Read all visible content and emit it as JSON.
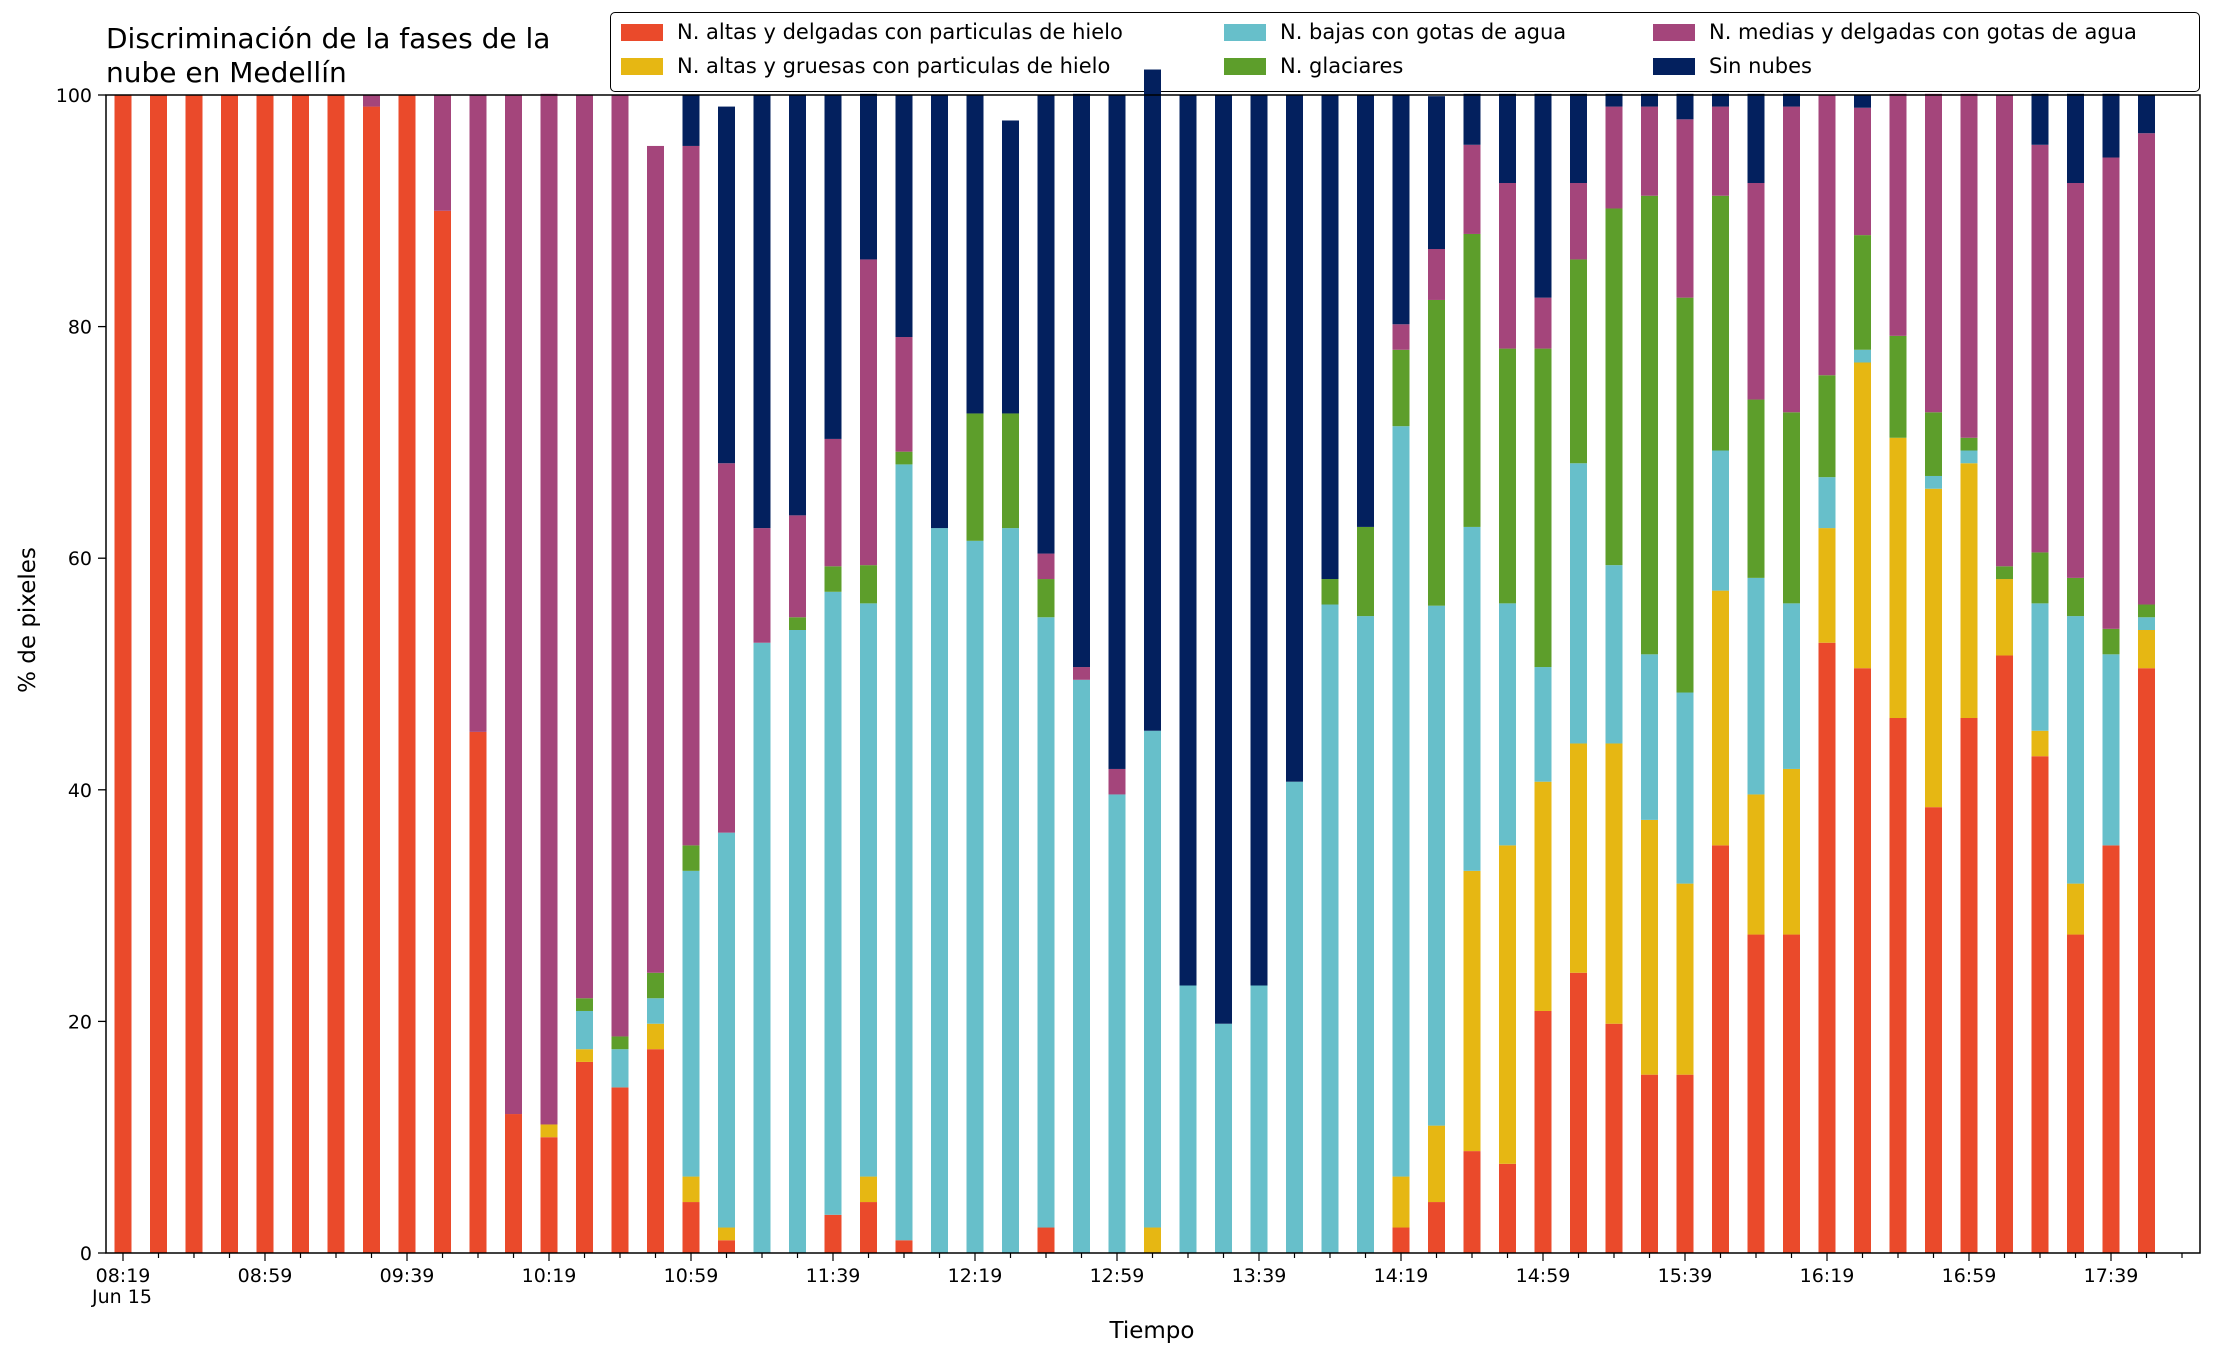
{
  "chart_data": {
    "type": "bar",
    "stacked": true,
    "title": "Discriminación de la fases de la\nnube en Medellín",
    "xlabel": "Tiempo",
    "ylabel": "% de pixeles",
    "ylim": [
      0,
      100
    ],
    "yticks": [
      0,
      20,
      40,
      60,
      80,
      100
    ],
    "date_label": "Jun 15",
    "xtick_labels": [
      "08:19",
      "08:59",
      "09:39",
      "10:19",
      "10:59",
      "11:39",
      "12:19",
      "12:59",
      "13:39",
      "14:19",
      "14:59",
      "15:39",
      "16:19",
      "16:59",
      "17:39"
    ],
    "x_start": "08:19",
    "x_interval_minutes": 10,
    "x_tick_every": 4,
    "series": [
      {
        "name": "N. altas y delgadas con particulas de hielo",
        "color": "#ea4a2b",
        "values": [
          100,
          100,
          100,
          100,
          100,
          100,
          100,
          99,
          100,
          90,
          45,
          12,
          10,
          16.5,
          14.3,
          17.6,
          4.4,
          1.1,
          0,
          0,
          3.3,
          4.4,
          1.1,
          0,
          0,
          0,
          2.2,
          0,
          0,
          0,
          0,
          0,
          0,
          0,
          0,
          0,
          2.2,
          4.4,
          8.8,
          7.7,
          20.9,
          24.2,
          19.8,
          15.4,
          15.4,
          35.2,
          27.5,
          27.5,
          52.7,
          50.5,
          46.2,
          38.5,
          46.2,
          51.6,
          42.9,
          27.5,
          35.2,
          50.5
        ]
      },
      {
        "name": "N. altas y gruesas con particulas de hielo",
        "color": "#e6b713",
        "values": [
          0,
          0,
          0,
          0,
          0,
          0,
          0,
          0,
          0,
          0,
          0,
          0,
          1.1,
          1.1,
          0,
          2.2,
          2.2,
          1.1,
          0,
          0,
          0,
          2.2,
          0,
          0,
          0,
          0,
          0,
          0,
          0,
          2.2,
          0,
          0,
          0,
          0,
          0,
          0,
          4.4,
          6.6,
          24.2,
          27.5,
          19.8,
          19.8,
          24.2,
          22,
          16.5,
          22,
          12.1,
          14.3,
          9.9,
          26.4,
          24.2,
          27.5,
          22,
          6.6,
          2.2,
          4.4,
          0,
          3.3
        ]
      },
      {
        "name": "N. bajas con gotas de agua",
        "color": "#67bfca",
        "values": [
          0,
          0,
          0,
          0,
          0,
          0,
          0,
          0,
          0,
          0,
          0,
          0,
          0,
          3.3,
          3.3,
          2.2,
          26.4,
          34.1,
          52.7,
          53.8,
          53.8,
          49.5,
          67,
          62.6,
          61.5,
          62.6,
          52.7,
          49.5,
          39.6,
          42.9,
          23.1,
          19.8,
          23.1,
          40.7,
          56,
          55,
          64.8,
          44.9,
          29.7,
          20.9,
          9.9,
          24.2,
          15.4,
          14.3,
          16.5,
          12.1,
          18.7,
          14.3,
          4.4,
          1.1,
          0,
          1.1,
          1.1,
          0,
          11,
          23.1,
          16.5,
          1.1
        ]
      },
      {
        "name": "N. glaciares",
        "color": "#5d9e2b",
        "values": [
          0,
          0,
          0,
          0,
          0,
          0,
          0,
          0,
          0,
          0,
          0,
          0,
          0,
          1.1,
          1.1,
          2.2,
          2.2,
          0,
          0,
          1.1,
          2.2,
          3.3,
          1.1,
          0,
          11,
          9.9,
          3.3,
          0,
          0,
          0,
          0,
          0,
          0,
          0,
          2.2,
          7.7,
          6.6,
          26.4,
          25.3,
          22,
          27.5,
          17.6,
          30.8,
          39.6,
          34.1,
          22,
          15.4,
          16.5,
          8.8,
          9.9,
          8.8,
          5.5,
          1.1,
          1.1,
          4.4,
          3.3,
          2.2,
          1.1
        ]
      },
      {
        "name": "N. medias y delgadas con gotas de agua",
        "color": "#a4457b",
        "values": [
          0,
          0,
          0,
          0,
          0,
          0,
          0,
          1,
          0,
          10,
          55,
          88,
          89,
          78,
          81.3,
          71.4,
          60.4,
          31.9,
          9.9,
          8.8,
          11,
          26.4,
          9.9,
          0,
          0,
          0,
          2.2,
          1.1,
          2.2,
          0,
          0,
          0,
          0,
          0,
          0,
          0,
          2.2,
          4.4,
          7.7,
          14.3,
          4.4,
          6.6,
          8.8,
          7.7,
          15.4,
          7.7,
          18.7,
          26.4,
          24.2,
          11,
          20.9,
          27.5,
          29.7,
          40.7,
          35.2,
          34.1,
          40.7,
          40.7
        ]
      },
      {
        "name": "Sin nubes",
        "color": "#03205e",
        "values": [
          0,
          0,
          0,
          0,
          0,
          0,
          0,
          0,
          0,
          0,
          0,
          0,
          0,
          0,
          0,
          0,
          4.4,
          30.8,
          37.4,
          36.3,
          29.7,
          14.3,
          20.9,
          37.4,
          27.5,
          25.3,
          39.6,
          49.5,
          58.2,
          57.1,
          76.9,
          80.2,
          76.9,
          59.3,
          41.8,
          37.3,
          19.8,
          13.2,
          4.4,
          7.7,
          17.6,
          7.7,
          1.1,
          1.1,
          2.2,
          1.1,
          7.7,
          1.1,
          0,
          1.1,
          0,
          0,
          0,
          0,
          4.4,
          7.7,
          5.5,
          3.3
        ]
      }
    ]
  },
  "legend": {
    "items": [
      {
        "label": "N. altas y delgadas con particulas de hielo",
        "color": "#ea4a2b"
      },
      {
        "label": "N. altas y gruesas con particulas de hielo",
        "color": "#e6b713"
      },
      {
        "label": "N. bajas con gotas de agua",
        "color": "#67bfca"
      },
      {
        "label": "N. glaciares",
        "color": "#5d9e2b"
      },
      {
        "label": "N. medias y delgadas con gotas de agua",
        "color": "#a4457b"
      },
      {
        "label": "Sin nubes",
        "color": "#03205e"
      }
    ]
  }
}
